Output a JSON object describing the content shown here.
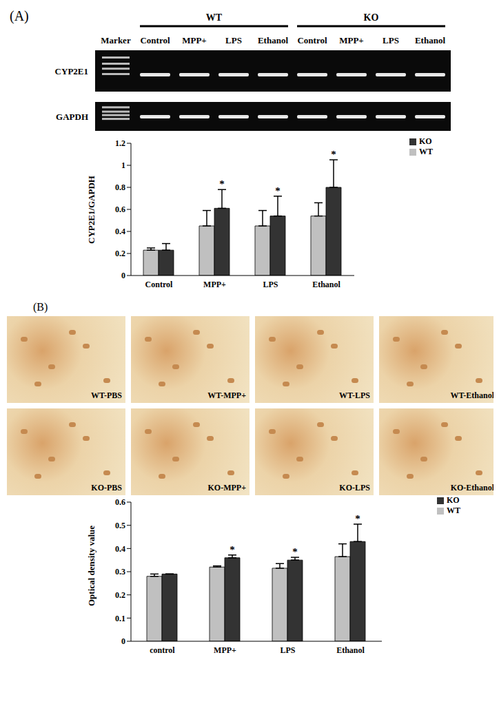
{
  "chart_data": [
    {
      "type": "bar",
      "panel": "(A)",
      "gel": {
        "groups": [
          "WT",
          "KO"
        ],
        "lanes": [
          "Marker",
          "Control",
          "MPP+",
          "LPS",
          "Ethanol",
          "Control",
          "MPP+",
          "LPS",
          "Ethanol"
        ],
        "rows": [
          "CYP2E1",
          "GAPDH"
        ]
      },
      "categories": [
        "Control",
        "MPP+",
        "LPS",
        "Ethanol"
      ],
      "y_label": "CYP2E1/GAPDH",
      "series": [
        {
          "name": "WT",
          "color": "#c0c0c0",
          "values": [
            0.23,
            0.45,
            0.45,
            0.54
          ],
          "errors": [
            0.02,
            0.14,
            0.14,
            0.12
          ]
        },
        {
          "name": "KO",
          "color": "#333333",
          "values": [
            0.23,
            0.61,
            0.54,
            0.8
          ],
          "errors": [
            0.06,
            0.17,
            0.18,
            0.25
          ],
          "annotations": [
            null,
            "*",
            "*",
            "*"
          ]
        }
      ],
      "ylim": [
        0,
        1.2
      ],
      "yticks": [
        0,
        0.2,
        0.4,
        0.6,
        0.8,
        1,
        1.2
      ],
      "legend": "top right",
      "grid": false
    },
    {
      "type": "bar",
      "panel": "(B)",
      "images": [
        "WT-PBS",
        "WT-MPP+",
        "WT-LPS",
        "WT-Ethanol",
        "KO-PBS",
        "KO-MPP+",
        "KO-LPS",
        "KO-Ethanol"
      ],
      "categories": [
        "control",
        "MPP+",
        "LPS",
        "Ethanol"
      ],
      "y_label": "Optical density value",
      "series": [
        {
          "name": "WT",
          "color": "#c0c0c0",
          "values": [
            0.28,
            0.32,
            0.315,
            0.365
          ],
          "errors": [
            0.01,
            0.005,
            0.02,
            0.055
          ]
        },
        {
          "name": "KO",
          "color": "#333333",
          "values": [
            0.29,
            0.36,
            0.35,
            0.43
          ],
          "errors": [
            0,
            0.012,
            0.012,
            0.075
          ],
          "annotations": [
            null,
            "*",
            "*",
            "*"
          ]
        }
      ],
      "ylim": [
        0,
        0.6
      ],
      "yticks": [
        0,
        0.1,
        0.2,
        0.3,
        0.4,
        0.5,
        0.6
      ],
      "legend": "top right",
      "grid": false
    }
  ]
}
